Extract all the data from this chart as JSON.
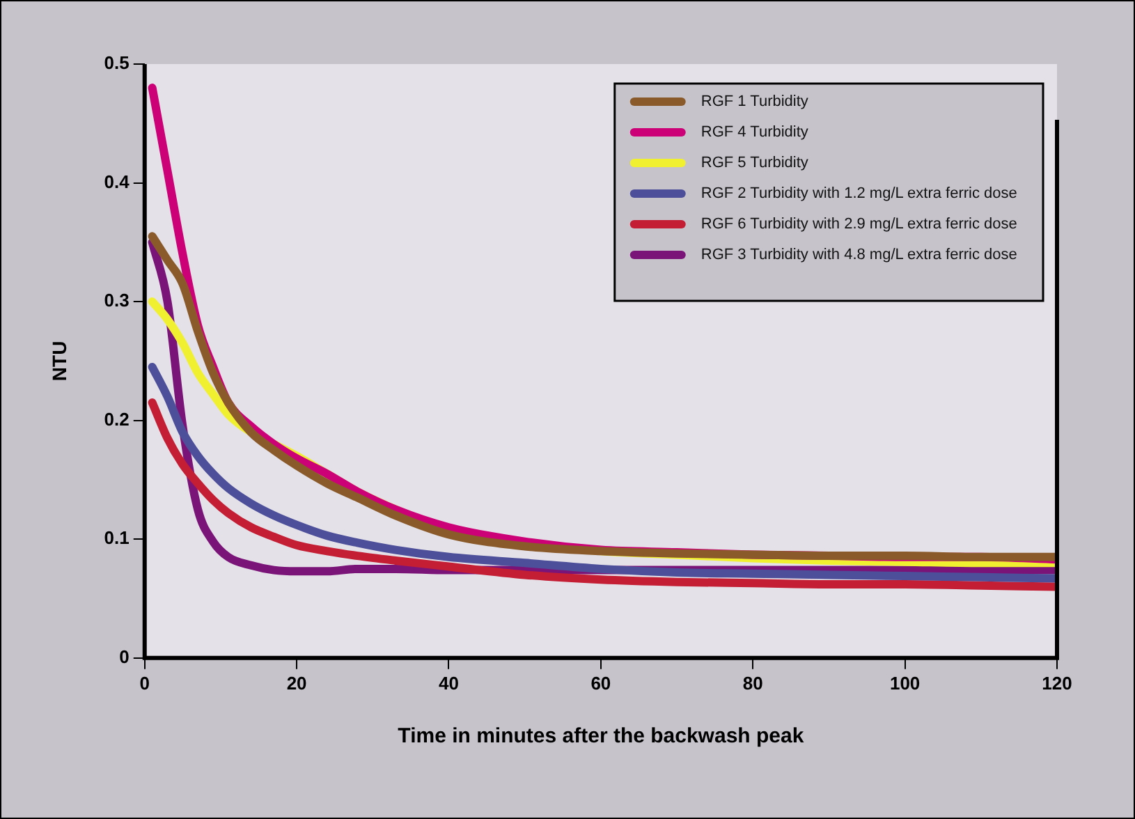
{
  "chart_data": {
    "type": "line",
    "xlabel": "Time in minutes after the backwash peak",
    "ylabel": "NTU",
    "xlim": [
      0,
      120
    ],
    "xticks": [
      0,
      20,
      40,
      60,
      80,
      100,
      120
    ],
    "ylim": [
      0,
      0.5
    ],
    "yticks": [
      0,
      0.1,
      0.2,
      0.3,
      0.4,
      0.5
    ],
    "grid": false,
    "legend": "top right",
    "marker": "none",
    "line_style": "solid",
    "x": [
      1,
      3,
      5,
      7,
      9,
      11,
      14,
      17,
      20,
      24,
      28,
      33,
      40,
      50,
      60,
      70,
      80,
      90,
      100,
      110,
      120
    ],
    "series": [
      {
        "name": "RGF 1 Turbidity",
        "color": "#8b5a2b",
        "values": [
          0.355,
          0.335,
          0.315,
          0.275,
          0.24,
          0.215,
          0.19,
          0.175,
          0.162,
          0.147,
          0.135,
          0.12,
          0.104,
          0.094,
          0.09,
          0.088,
          0.087,
          0.086,
          0.086,
          0.085,
          0.085
        ]
      },
      {
        "name": "RGF 4 Turbidity",
        "color": "#cc0077",
        "values": [
          0.48,
          0.41,
          0.34,
          0.28,
          0.245,
          0.215,
          0.195,
          0.18,
          0.168,
          0.155,
          0.14,
          0.125,
          0.11,
          0.098,
          0.091,
          0.089,
          0.087,
          0.086,
          0.085,
          0.085,
          0.083
        ]
      },
      {
        "name": "RGF 5 Turbidity",
        "color": "#f0f030",
        "values": [
          0.3,
          0.285,
          0.265,
          0.24,
          0.222,
          0.205,
          0.19,
          0.18,
          0.17,
          0.155,
          0.14,
          0.125,
          0.107,
          0.097,
          0.09,
          0.087,
          0.084,
          0.082,
          0.081,
          0.08,
          0.08
        ]
      },
      {
        "name": "RGF 2 Turbidity with 1.2 mg/L extra ferric dose",
        "color": "#4d4f9a",
        "values": [
          0.245,
          0.22,
          0.19,
          0.17,
          0.155,
          0.143,
          0.13,
          0.12,
          0.112,
          0.103,
          0.097,
          0.091,
          0.085,
          0.08,
          0.075,
          0.072,
          0.071,
          0.07,
          0.069,
          0.068,
          0.067
        ]
      },
      {
        "name": "RGF 6 Turbidity with 2.9 mg/L extra ferric dose",
        "color": "#c41e35",
        "values": [
          0.215,
          0.185,
          0.163,
          0.147,
          0.133,
          0.122,
          0.11,
          0.102,
          0.095,
          0.09,
          0.086,
          0.082,
          0.077,
          0.07,
          0.066,
          0.064,
          0.063,
          0.062,
          0.062,
          0.061,
          0.06
        ]
      },
      {
        "name": "RGF 3 Turbidity with 4.8 mg/L extra ferric dose",
        "color": "#7b1478",
        "values": [
          0.35,
          0.3,
          0.195,
          0.125,
          0.098,
          0.085,
          0.078,
          0.074,
          0.073,
          0.073,
          0.075,
          0.075,
          0.074,
          0.074,
          0.074,
          0.074,
          0.074,
          0.074,
          0.074,
          0.074,
          0.074
        ]
      }
    ]
  }
}
